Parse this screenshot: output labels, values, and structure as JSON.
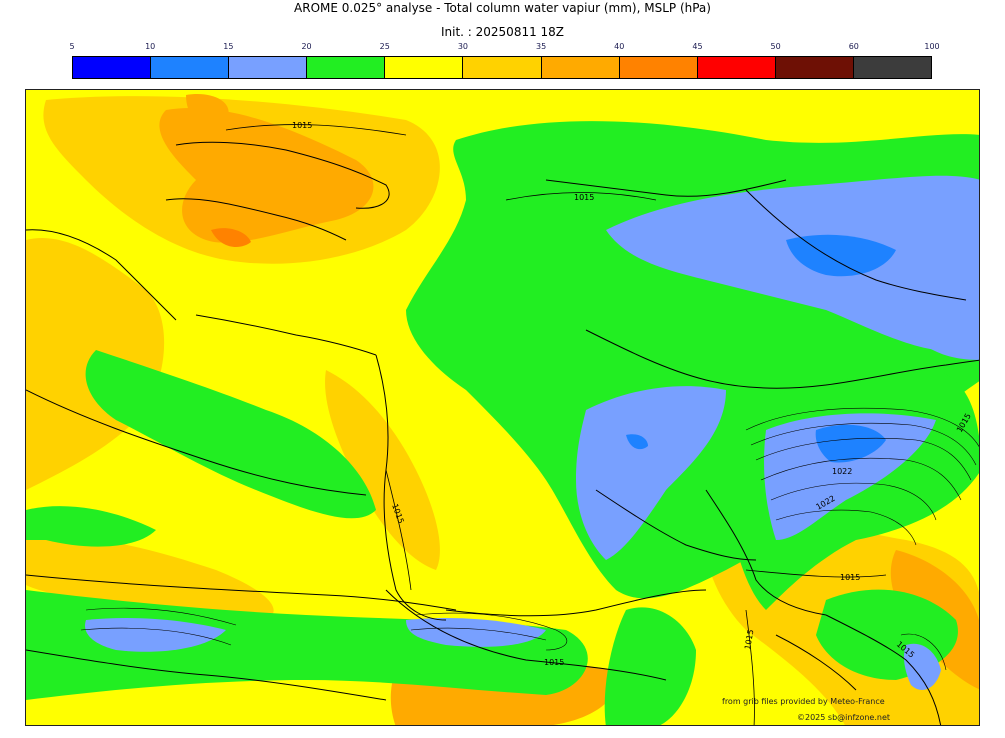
{
  "header": {
    "title": "AROME 0.025° analyse - Total column water vapiur (mm), MSLP (hPa)",
    "init": "Init. : 20250811 18Z"
  },
  "legend": {
    "ticks": [
      "5",
      "10",
      "15",
      "20",
      "25",
      "30",
      "35",
      "40",
      "45",
      "50",
      "60",
      "100"
    ],
    "colors": [
      "#0000ff",
      "#1e82ff",
      "#78a0ff",
      "#22ee22",
      "#ffff00",
      "#ffd200",
      "#ffaa00",
      "#ff8200",
      "#ff0000",
      "#6e1005",
      "#3c3c3c"
    ]
  },
  "map": {
    "isobar_labels": [
      "1015",
      "1015",
      "1015",
      "1022",
      "1022",
      "1015",
      "1015",
      "1015",
      "1015",
      "1015"
    ],
    "colors": {
      "yellow": "#ffff00",
      "gold": "#ffd200",
      "orange": "#ffaa00",
      "darkorange": "#ff8200",
      "green": "#22ee22",
      "lightblue": "#78a0ff",
      "blue": "#1e82ff"
    }
  },
  "credits": {
    "source": "from grib files provided by Meteo-France",
    "copyright": "©2025 sb@infzone.net"
  }
}
